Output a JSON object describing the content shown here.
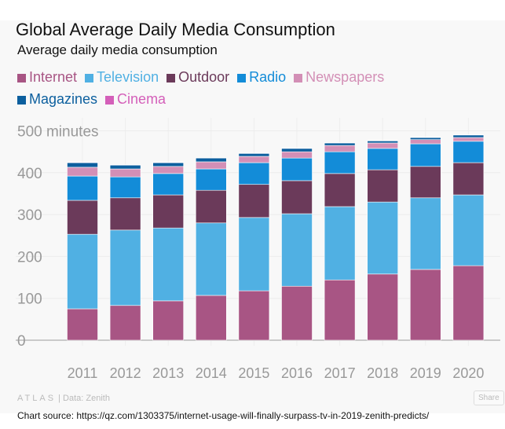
{
  "chart_data": {
    "type": "bar",
    "stacked": true,
    "title": "Global Average Daily Media Consumption",
    "subtitle": "Average daily media consumption",
    "ylabel_unit": "minutes",
    "ylim": [
      0,
      500
    ],
    "yticks": [
      0,
      100,
      200,
      300,
      400,
      500
    ],
    "ytick_labels": [
      "0",
      "100",
      "200",
      "300",
      "400",
      "500 minutes"
    ],
    "grid": true,
    "legend_position": "top",
    "categories": [
      "2011",
      "2012",
      "2013",
      "2014",
      "2015",
      "2016",
      "2017",
      "2018",
      "2019",
      "2020"
    ],
    "series": [
      {
        "name": "Internet",
        "color": "#a85584",
        "values": [
          75,
          83,
          94,
          107,
          118,
          129,
          144,
          158,
          169,
          178
        ]
      },
      {
        "name": "Television",
        "color": "#50b0e3",
        "values": [
          178,
          180,
          174,
          173,
          175,
          173,
          175,
          172,
          171,
          169
        ]
      },
      {
        "name": "Outdoor",
        "color": "#6b3a5a",
        "values": [
          81,
          77,
          79,
          78,
          79,
          79,
          79,
          77,
          75,
          77
        ]
      },
      {
        "name": "Radio",
        "color": "#138cd8",
        "values": [
          58,
          50,
          51,
          51,
          52,
          54,
          52,
          51,
          54,
          51
        ]
      },
      {
        "name": "Newspapers",
        "color": "#d38fb6",
        "values": [
          21,
          19,
          17,
          17,
          15,
          15,
          15,
          13,
          10,
          9
        ]
      },
      {
        "name": "Magazines",
        "color": "#0c5f9e",
        "values": [
          11,
          9,
          9,
          9,
          7,
          8,
          6,
          5,
          5,
          6
        ]
      },
      {
        "name": "Cinema",
        "color": "#d45fb9",
        "values": [
          1,
          1,
          1,
          1,
          1,
          1,
          1,
          1,
          1,
          1
        ]
      }
    ]
  },
  "footer": {
    "brand": "ATLAS",
    "data": "Data: Zenith",
    "share": "Share",
    "source": "Chart source: https://qz.com/1303375/internet-usage-will-finally-surpass-tv-in-2019-zenith-predicts/"
  }
}
